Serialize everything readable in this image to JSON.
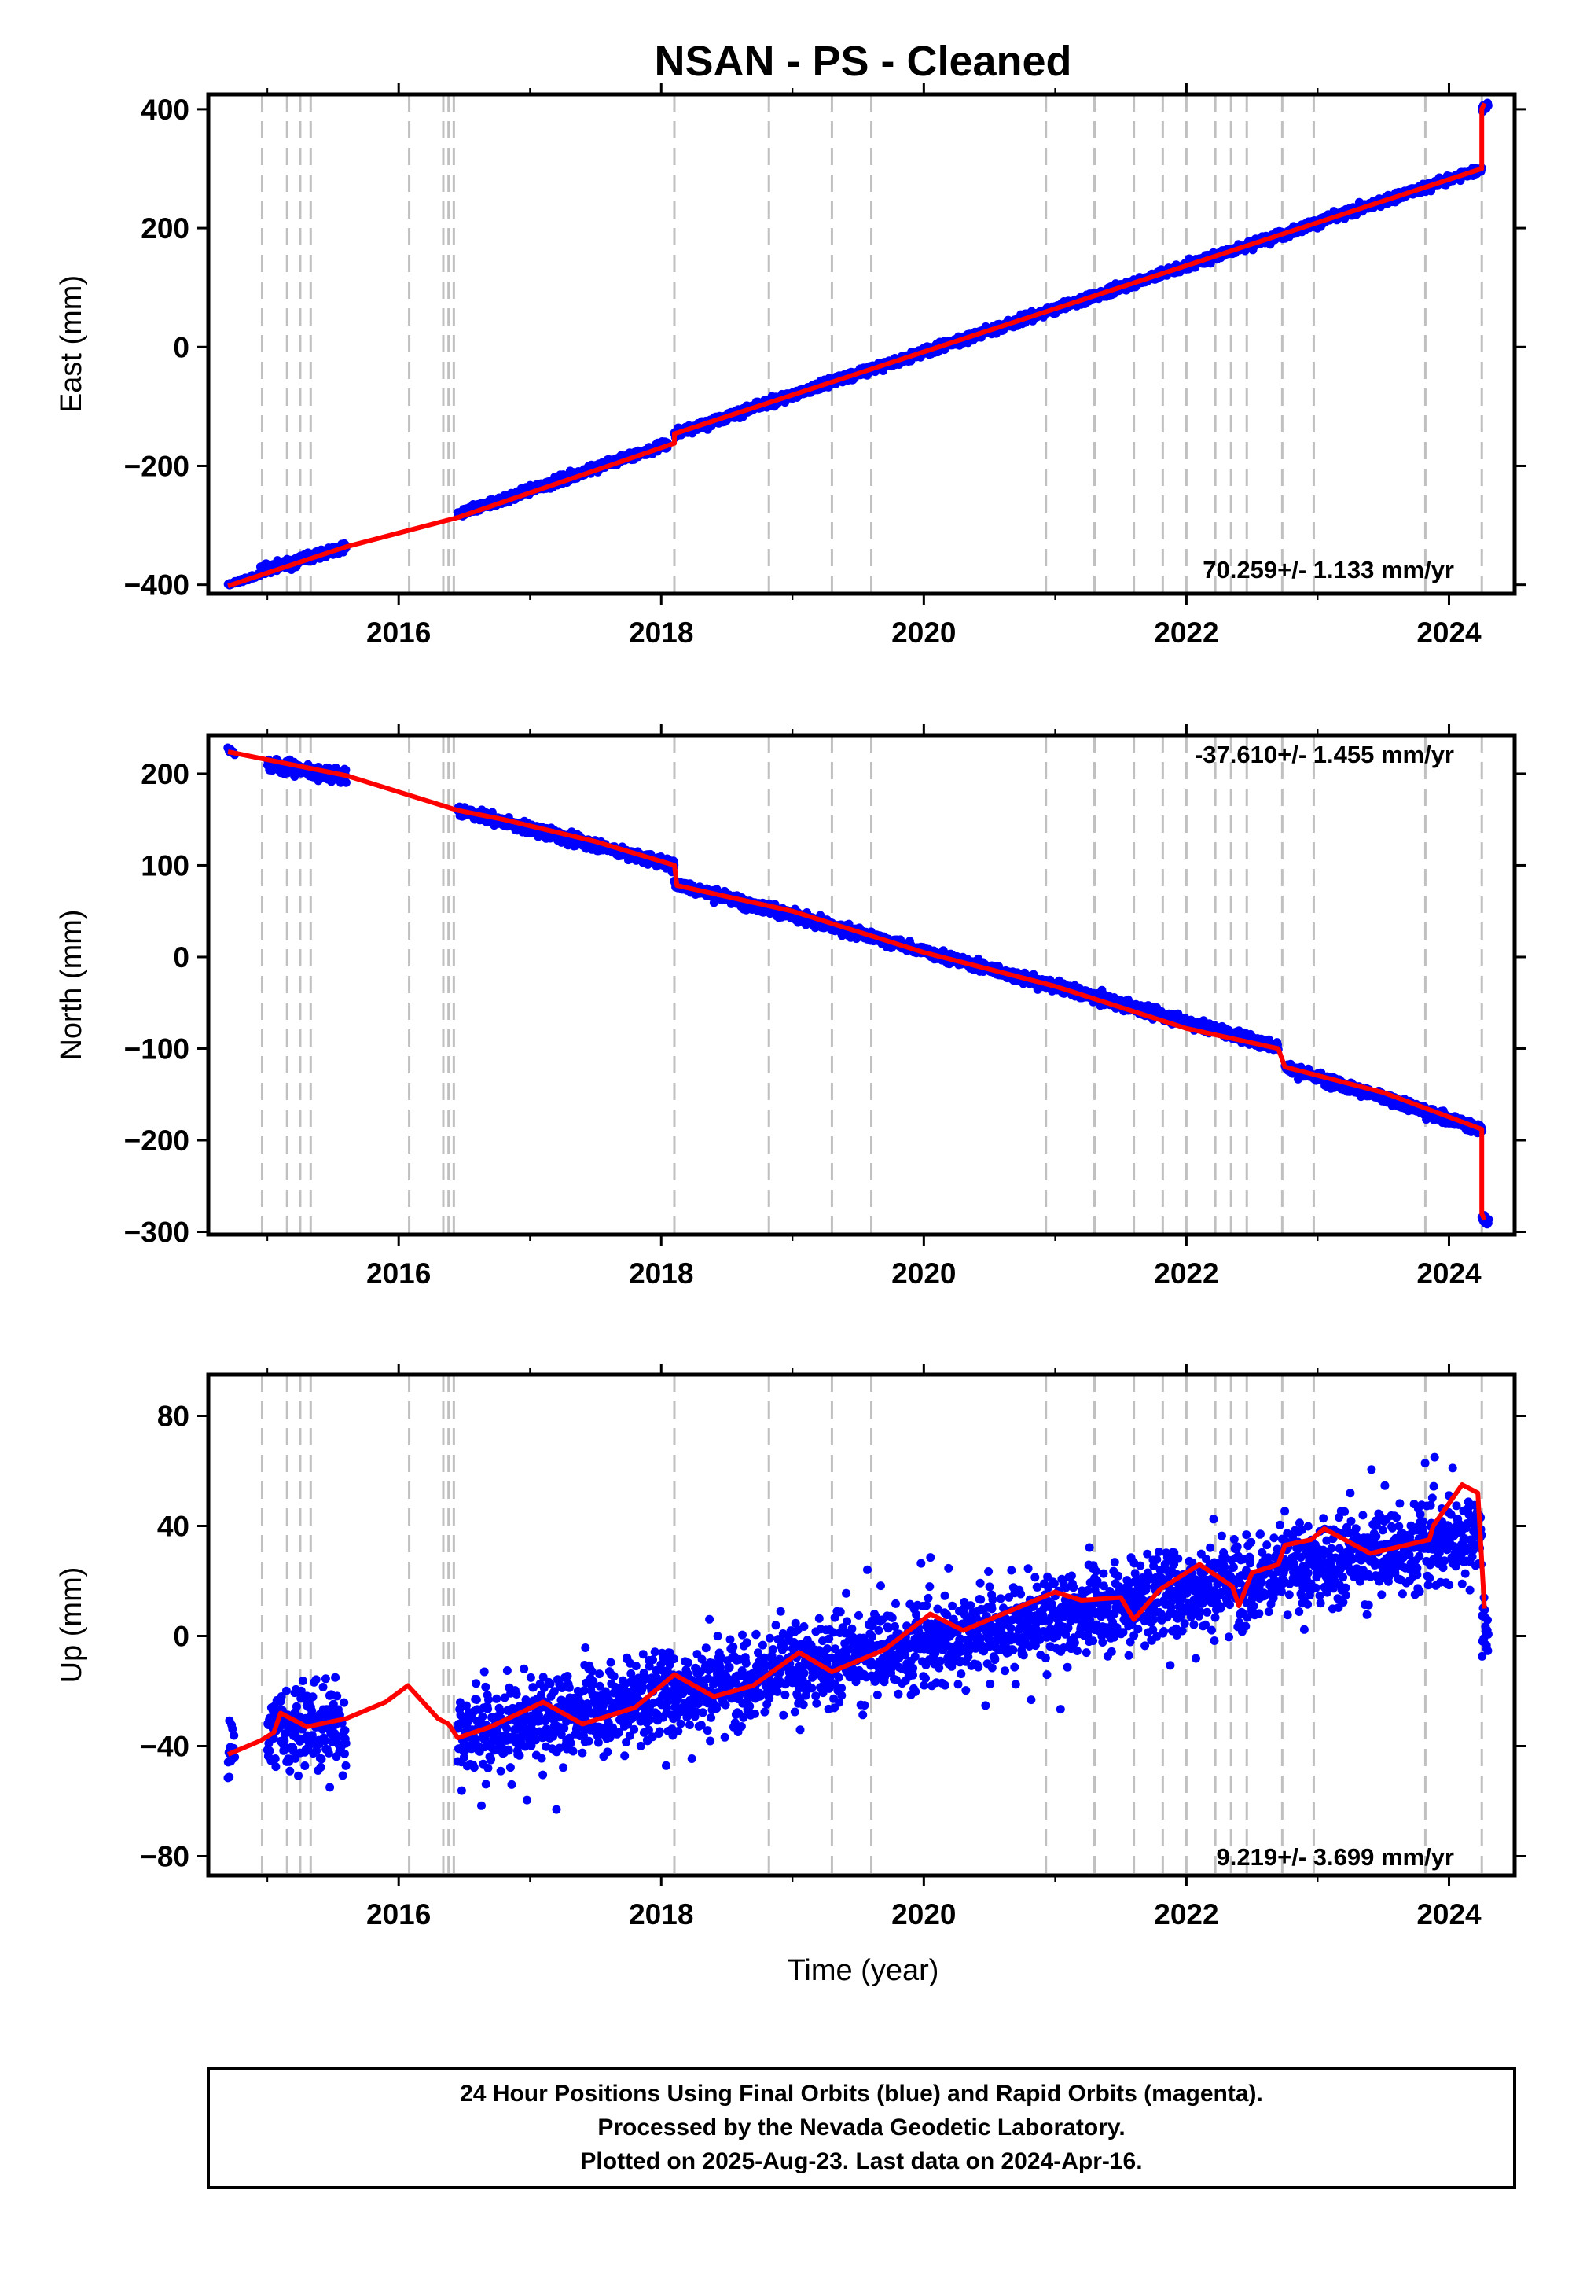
{
  "title": "NSAN  - PS - Cleaned",
  "xlabel": "Time (year)",
  "caption": {
    "line1": "24 Hour Positions Using Final Orbits (blue) and Rapid Orbits (magenta).",
    "line2": "Processed by the Nevada Geodetic Laboratory.",
    "line3": "Plotted on 2025-Aug-23. Last data on 2024-Apr-16."
  },
  "colors": {
    "data": "#0000ff",
    "model": "#ff0000",
    "breaks": "#c0c0c0",
    "axes": "#000000"
  },
  "chart_data": [
    {
      "type": "scatter",
      "id": "east",
      "ylabel": "East (mm)",
      "rate_label": "70.259+/- 1.133 mm/yr",
      "xlim": [
        2014.55,
        2024.5
      ],
      "ylim": [
        -415,
        425
      ],
      "xticks": [
        2016,
        2018,
        2020,
        2022,
        2024
      ],
      "yticks": [
        -400,
        -200,
        0,
        200,
        400
      ],
      "segments": [
        {
          "x": [
            2014.7,
            2014.95
          ],
          "y": [
            -400,
            -383
          ],
          "noise": 2
        },
        {
          "x": [
            2014.95,
            2015.6
          ],
          "y": [
            -376,
            -336
          ],
          "noise": 6
        },
        {
          "x": [
            2016.45,
            2018.05
          ],
          "y": [
            -282,
            -162
          ],
          "noise": 5
        },
        {
          "x": [
            2018.1,
            2024.25
          ],
          "y": [
            -146,
            300
          ],
          "noise": 5
        },
        {
          "x": [
            2024.25,
            2024.3
          ],
          "y": [
            400,
            410
          ],
          "noise": 3
        }
      ],
      "model": {
        "x": [
          2014.7,
          2015.6,
          2016.45,
          2018.1,
          2018.1,
          2024.25,
          2024.25,
          2024.27
        ],
        "y": [
          -402,
          -336,
          -287,
          -162,
          -146,
          300,
          400,
          410
        ]
      }
    },
    {
      "type": "scatter",
      "id": "north",
      "ylabel": "North (mm)",
      "rate_label": "-37.610+/- 1.455 mm/yr",
      "xlim": [
        2014.55,
        2024.5
      ],
      "ylim": [
        -303,
        242
      ],
      "xticks": [
        2016,
        2018,
        2020,
        2022,
        2024
      ],
      "yticks": [
        -300,
        -200,
        -100,
        0,
        100,
        200
      ],
      "segments": [
        {
          "x": [
            2014.7,
            2014.75
          ],
          "y": [
            226,
            222
          ],
          "noise": 2
        },
        {
          "x": [
            2015.0,
            2015.6
          ],
          "y": [
            210,
            197
          ],
          "noise": 5
        },
        {
          "x": [
            2016.45,
            2018.1
          ],
          "y": [
            160,
            100
          ],
          "noise": 4
        },
        {
          "x": [
            2018.1,
            2022.7
          ],
          "y": [
            80,
            -98
          ],
          "noise": 4
        },
        {
          "x": [
            2022.75,
            2024.25
          ],
          "y": [
            -120,
            -188
          ],
          "noise": 4
        },
        {
          "x": [
            2024.25,
            2024.3
          ],
          "y": [
            -283,
            -290
          ],
          "noise": 3
        }
      ],
      "model": {
        "x": [
          2014.7,
          2015.6,
          2016.45,
          2016.8,
          2017.5,
          2018.1,
          2018.12,
          2019.0,
          2020.0,
          2021.0,
          2022.0,
          2022.7,
          2022.75,
          2023.5,
          2024.25,
          2024.25,
          2024.27
        ],
        "y": [
          224,
          198,
          160,
          150,
          126,
          100,
          78,
          50,
          5,
          -32,
          -78,
          -100,
          -120,
          -148,
          -188,
          -280,
          -287
        ]
      }
    },
    {
      "type": "scatter",
      "id": "up",
      "ylabel": "Up (mm)",
      "rate_label": "9.219+/- 3.699 mm/yr",
      "xlim": [
        2014.55,
        2024.5
      ],
      "ylim": [
        -87,
        95
      ],
      "xticks": [
        2016,
        2018,
        2020,
        2022,
        2024
      ],
      "yticks": [
        -80,
        -40,
        0,
        40,
        80
      ],
      "segments": [
        {
          "x": [
            2014.7,
            2014.75
          ],
          "y": [
            -42,
            -40
          ],
          "noise": 6
        },
        {
          "x": [
            2015.0,
            2015.6
          ],
          "y": [
            -33,
            -33
          ],
          "noise": 11
        },
        {
          "x": [
            2016.45,
            2024.25
          ],
          "y": [
            -36,
            38
          ],
          "noise": 11
        },
        {
          "x": [
            2024.25,
            2024.3
          ],
          "y": [
            2,
            0
          ],
          "noise": 8
        }
      ],
      "model": {
        "x": [
          2014.7,
          2014.95,
          2015.05,
          2015.1,
          2015.3,
          2015.6,
          2015.9,
          2016.07,
          2016.3,
          2016.38,
          2016.45,
          2016.7,
          2017.1,
          2017.4,
          2017.8,
          2018.1,
          2018.4,
          2018.7,
          2019.05,
          2019.3,
          2019.7,
          2020.05,
          2020.3,
          2020.6,
          2021.0,
          2021.2,
          2021.5,
          2021.6,
          2021.8,
          2022.1,
          2022.35,
          2022.4,
          2022.5,
          2022.7,
          2022.75,
          2022.95,
          2023.05,
          2023.4,
          2023.85,
          2023.88,
          2024.1,
          2024.22,
          2024.27
        ],
        "y": [
          -43,
          -38,
          -35,
          -28,
          -33,
          -30,
          -24,
          -18,
          -30,
          -32,
          -37,
          -33,
          -24,
          -32,
          -26,
          -14,
          -22,
          -18,
          -6,
          -13,
          -5,
          8,
          2,
          8,
          16,
          13,
          14,
          6,
          17,
          26,
          18,
          11,
          23,
          26,
          33,
          35,
          39,
          30,
          35,
          40,
          55,
          52,
          10
        ]
      }
    }
  ],
  "break_years": [
    2014.96,
    2015.15,
    2015.25,
    2015.33,
    2016.08,
    2016.34,
    2016.38,
    2016.42,
    2018.1,
    2018.82,
    2019.3,
    2019.6,
    2020.93,
    2021.3,
    2021.6,
    2021.82,
    2022.0,
    2022.22,
    2022.34,
    2022.46,
    2022.73,
    2022.97,
    2023.82,
    2024.25
  ]
}
